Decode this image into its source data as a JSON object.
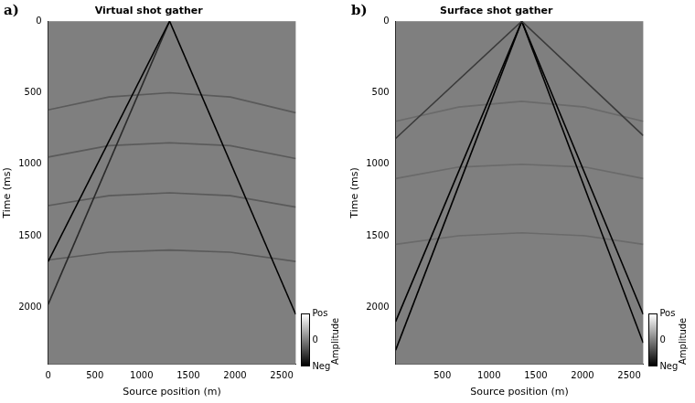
{
  "chart_data": [
    {
      "type": "line",
      "panel": "a)",
      "title": "Virtual shot gather",
      "x_label": "Source position (m)",
      "y_label": "Time (ms)",
      "xlim": [
        0,
        2650
      ],
      "xticks": [
        0,
        500,
        1000,
        1500,
        2000,
        2500
      ],
      "ylim": [
        2400,
        0
      ],
      "yticks": [
        0,
        500,
        1000,
        1500,
        2000
      ],
      "grid": false,
      "series": [
        {
          "color": "#000000",
          "x": [
            1300,
            0
          ],
          "values": [
            0,
            1680
          ]
        },
        {
          "color": "#000000",
          "x": [
            1300,
            2650
          ],
          "values": [
            0,
            2050
          ]
        },
        {
          "color": "#2a2a2a",
          "x": [
            1300,
            0
          ],
          "values": [
            0,
            1980
          ]
        },
        {
          "color": "#5a5a5a",
          "x": [
            0,
            650,
            1300,
            1950,
            2650
          ],
          "values": [
            620,
            530,
            500,
            530,
            640
          ]
        },
        {
          "color": "#5a5a5a",
          "x": [
            0,
            650,
            1300,
            1950,
            2650
          ],
          "values": [
            950,
            870,
            850,
            870,
            960
          ]
        },
        {
          "color": "#5a5a5a",
          "x": [
            0,
            650,
            1300,
            1950,
            2650
          ],
          "values": [
            1290,
            1220,
            1200,
            1220,
            1300
          ]
        },
        {
          "color": "#5a5a5a",
          "x": [
            0,
            650,
            1300,
            1950,
            2650
          ],
          "values": [
            1670,
            1615,
            1600,
            1615,
            1680
          ]
        }
      ],
      "colorbar": {
        "title": "Amplitude",
        "range": [
          -1,
          1
        ],
        "ticks": [
          {
            "value": 1,
            "label": "Pos"
          },
          0,
          {
            "value": -1,
            "label": "Neg"
          }
        ]
      }
    },
    {
      "type": "line",
      "panel": "b)",
      "title": "Surface shot gather",
      "x_label": "Source position (m)",
      "y_label": "Time (ms)",
      "xlim": [
        0,
        2650
      ],
      "xticks": [
        500,
        1000,
        1500,
        2000,
        2500
      ],
      "ylim": [
        2400,
        0
      ],
      "yticks": [
        0,
        500,
        1000,
        1500,
        2000
      ],
      "grid": false,
      "series": [
        {
          "color": "#3a3a3a",
          "x": [
            1350,
            0
          ],
          "values": [
            0,
            820
          ]
        },
        {
          "color": "#3a3a3a",
          "x": [
            1350,
            2650
          ],
          "values": [
            0,
            800
          ]
        },
        {
          "color": "#000000",
          "x": [
            1350,
            0
          ],
          "values": [
            0,
            2100
          ]
        },
        {
          "color": "#000000",
          "x": [
            1350,
            0
          ],
          "values": [
            0,
            2300
          ]
        },
        {
          "color": "#000000",
          "x": [
            1350,
            2650
          ],
          "values": [
            0,
            2050
          ]
        },
        {
          "color": "#000000",
          "x": [
            1350,
            2650
          ],
          "values": [
            0,
            2250
          ]
        },
        {
          "color": "#6a6a6a",
          "x": [
            0,
            675,
            1350,
            2025,
            2650
          ],
          "values": [
            700,
            600,
            560,
            600,
            700
          ]
        },
        {
          "color": "#6a6a6a",
          "x": [
            0,
            675,
            1350,
            2025,
            2650
          ],
          "values": [
            1100,
            1020,
            1000,
            1020,
            1100
          ]
        },
        {
          "color": "#6a6a6a",
          "x": [
            0,
            675,
            1350,
            2025,
            2650
          ],
          "values": [
            1560,
            1500,
            1480,
            1500,
            1560
          ]
        }
      ],
      "colorbar": {
        "title": "Amplitude",
        "range": [
          -1,
          1
        ],
        "ticks": [
          {
            "value": 1,
            "label": "Pos"
          },
          0,
          {
            "value": -1,
            "label": "Neg"
          }
        ]
      }
    }
  ]
}
